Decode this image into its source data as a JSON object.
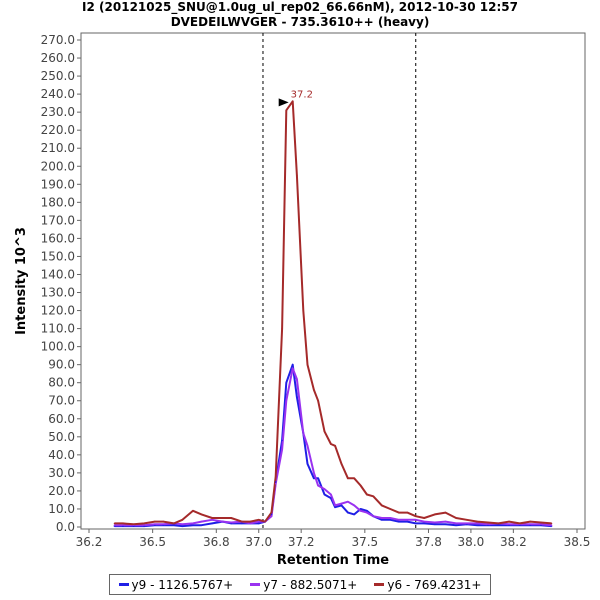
{
  "header": {
    "title_line1": "I2 (20121025_SNU@1.0ug_ul_rep02_66.66nM), 2012-10-30 12:57",
    "title_line2": "DVEDEILWVGER - 735.3610++ (heavy)"
  },
  "chart_data": {
    "type": "line",
    "xlabel": "Retention Time",
    "ylabel": "Intensity  10^3",
    "xlim": [
      36.2,
      38.5
    ],
    "ylim": [
      0,
      270
    ],
    "xticks": [
      36.2,
      36.5,
      36.8,
      37.0,
      37.2,
      37.5,
      37.8,
      38.0,
      38.2,
      38.5
    ],
    "xtick_labels": [
      "36.2",
      "36.5",
      "36.8",
      "37.0",
      "37.2",
      "37.5",
      "37.8",
      "38.0",
      "38.2",
      "38.5"
    ],
    "yticks": [
      0,
      10,
      20,
      30,
      40,
      50,
      60,
      70,
      80,
      90,
      100,
      110,
      120,
      130,
      140,
      150,
      160,
      170,
      180,
      190,
      200,
      210,
      220,
      230,
      240,
      250,
      260,
      270
    ],
    "ytick_labels": [
      "0.0",
      "10.0",
      "20.0",
      "30.0",
      "40.0",
      "50.0",
      "60.0",
      "70.0",
      "80.0",
      "90.0",
      "100.0",
      "110.0",
      "120.0",
      "130.0",
      "140.0",
      "150.0",
      "160.0",
      "170.0",
      "180.0",
      "190.0",
      "200.0",
      "210.0",
      "220.0",
      "230.0",
      "240.0",
      "250.0",
      "260.0",
      "270.0"
    ],
    "grid": false,
    "legend_position": "bottom",
    "boundaries": [
      37.02,
      37.74
    ],
    "peak_annotation": {
      "label": "37.2",
      "x": 37.16,
      "y": 236,
      "color": "#a52a2a"
    },
    "series": [
      {
        "name": "y9 - 1126.5767+",
        "color": "#1f1fe6",
        "x": [
          36.32,
          36.36,
          36.41,
          36.46,
          36.51,
          36.55,
          36.6,
          36.64,
          36.69,
          36.73,
          36.78,
          36.83,
          36.87,
          36.92,
          36.96,
          37.0,
          37.03,
          37.06,
          37.08,
          37.11,
          37.13,
          37.16,
          37.18,
          37.21,
          37.23,
          37.26,
          37.28,
          37.31,
          37.34,
          37.36,
          37.39,
          37.42,
          37.45,
          37.48,
          37.51,
          37.54,
          37.58,
          37.62,
          37.66,
          37.7,
          37.74,
          37.78,
          37.83,
          37.88,
          37.93,
          37.98,
          38.03,
          38.08,
          38.13,
          38.18,
          38.23,
          38.28,
          38.33,
          38.38
        ],
        "y": [
          0.5,
          0.5,
          0.5,
          0.5,
          1,
          1,
          1,
          0.5,
          1,
          1,
          2,
          3,
          2,
          2,
          2,
          2,
          3,
          7,
          25,
          48,
          80,
          90,
          72,
          52,
          35,
          27,
          27,
          18,
          16,
          11,
          12,
          8,
          7,
          10,
          9,
          6,
          4,
          4,
          3,
          3,
          2,
          2,
          1.5,
          1.5,
          1,
          1.5,
          1,
          1,
          1,
          1,
          1,
          1,
          1,
          0.5
        ]
      },
      {
        "name": "y7 - 882.5071+",
        "color": "#9a32f0",
        "x": [
          36.32,
          36.36,
          36.41,
          36.46,
          36.51,
          36.55,
          36.6,
          36.64,
          36.69,
          36.73,
          36.78,
          36.83,
          36.87,
          36.92,
          36.96,
          37.0,
          37.03,
          37.06,
          37.08,
          37.11,
          37.13,
          37.16,
          37.18,
          37.21,
          37.23,
          37.26,
          37.28,
          37.31,
          37.34,
          37.36,
          37.39,
          37.42,
          37.45,
          37.48,
          37.51,
          37.54,
          37.58,
          37.62,
          37.66,
          37.7,
          37.74,
          37.78,
          37.83,
          37.88,
          37.93,
          37.98,
          38.03,
          38.08,
          38.13,
          38.18,
          38.23,
          38.28,
          38.33,
          38.38
        ],
        "y": [
          1,
          1,
          1,
          1,
          1.5,
          1.5,
          2,
          1.5,
          2,
          3,
          4,
          3,
          2.5,
          3,
          2,
          3,
          3,
          6,
          24,
          43,
          70,
          88,
          82,
          52,
          45,
          30,
          23,
          21,
          18,
          12,
          13,
          14,
          12,
          9,
          8,
          6,
          5,
          5,
          4,
          4,
          4,
          3,
          2.5,
          3,
          2,
          2,
          2,
          1.5,
          2,
          1.5,
          1.5,
          1.5,
          1.5,
          1
        ]
      },
      {
        "name": "y6 - 769.4231+",
        "color": "#a52a2a",
        "x": [
          36.32,
          36.36,
          36.41,
          36.46,
          36.51,
          36.55,
          36.6,
          36.64,
          36.69,
          36.73,
          36.78,
          36.83,
          36.87,
          36.92,
          36.96,
          37.0,
          37.03,
          37.06,
          37.08,
          37.11,
          37.13,
          37.16,
          37.18,
          37.21,
          37.23,
          37.26,
          37.28,
          37.31,
          37.34,
          37.36,
          37.39,
          37.42,
          37.45,
          37.48,
          37.51,
          37.54,
          37.58,
          37.62,
          37.66,
          37.7,
          37.74,
          37.78,
          37.83,
          37.88,
          37.93,
          37.98,
          38.03,
          38.08,
          38.13,
          38.18,
          38.23,
          38.28,
          38.33,
          38.38
        ],
        "y": [
          2,
          2,
          1.5,
          2,
          3,
          3,
          2,
          4,
          9,
          7,
          5,
          5,
          5,
          3,
          3,
          4,
          3,
          8,
          28,
          110,
          231,
          236,
          195,
          120,
          90,
          76,
          70,
          53,
          46,
          45,
          35,
          27,
          27,
          23,
          18,
          17,
          12,
          10,
          8,
          8,
          6,
          5,
          7,
          8,
          5,
          4,
          3,
          2.5,
          2,
          3,
          2,
          3,
          2.5,
          2
        ]
      }
    ]
  }
}
